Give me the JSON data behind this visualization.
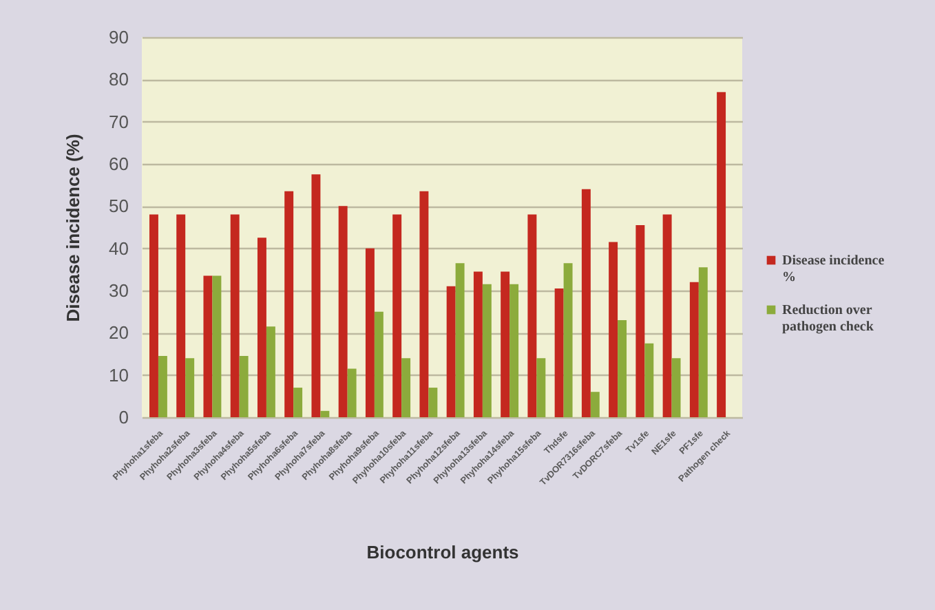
{
  "chart_data": {
    "type": "bar",
    "xlabel": "Biocontrol agents",
    "ylabel": "Disease incidence (%)",
    "categories": [
      "Phyhoha1sfeba",
      "Phyhoha2sfeba",
      "Phyhoha3sfeba",
      "Phyhoha4sfeba",
      "Phyhoha5sfeba",
      "Phyhoha6sfeba",
      "Phyhoha7sfeba",
      "Phyhoha8sfeba",
      "Phyhoha9sfeba",
      "Phyhoha10sfeba",
      "Phyhoha11sfeba",
      "Phyhoha12sfeba",
      "Phyhoha13sfeba",
      "Phyhoha14sfeba",
      "Phyhoha15sfeba",
      "Thdsfe",
      "TvDOR7316sfeba",
      "TvDORC7sfeba",
      "Tv1sfe",
      "NE1sfe",
      "PF1sfe",
      "Pathogen check"
    ],
    "series": [
      {
        "name": "Disease incidence %",
        "color": "#c4281f",
        "values": [
          48,
          48,
          33.5,
          48,
          42.5,
          53.5,
          57.5,
          50,
          40,
          48,
          53.5,
          31,
          34.5,
          34.5,
          48,
          30.5,
          54,
          41.5,
          45.5,
          48,
          32,
          77
        ]
      },
      {
        "name": "Reduction over pathogen check",
        "color": "#8cab3c",
        "values": [
          14.5,
          14,
          33.5,
          14.5,
          21.5,
          7,
          1.5,
          11.5,
          25,
          14,
          7,
          36.5,
          31.5,
          31.5,
          14,
          36.5,
          6,
          23,
          17.5,
          14,
          35.5,
          null
        ]
      }
    ],
    "ylim": [
      0,
      90
    ],
    "yticks": [
      0,
      10,
      20,
      30,
      40,
      50,
      60,
      70,
      80,
      90
    ],
    "grid": "y",
    "legend": "right"
  }
}
